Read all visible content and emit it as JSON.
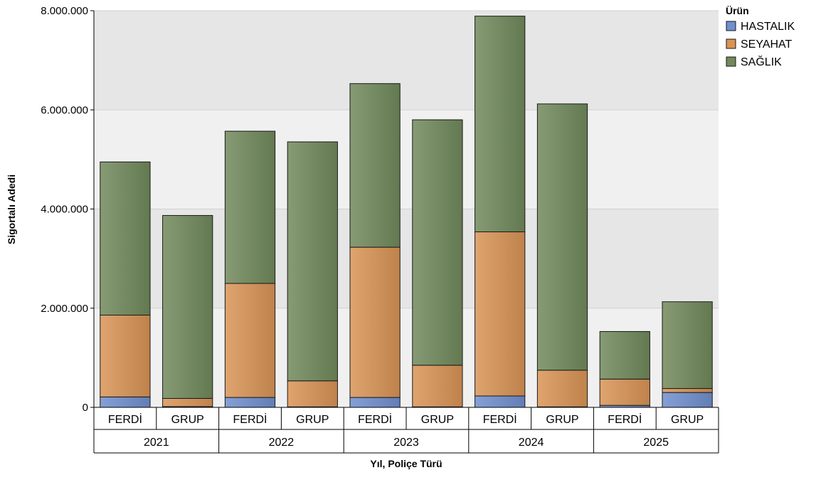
{
  "chart_data": {
    "type": "bar",
    "stacked": true,
    "title": "",
    "xlabel": "Yıl, Poliçe Türü",
    "ylabel": "Sigortalı Adedi",
    "ylim": [
      0,
      8000000
    ],
    "yticks": [
      0,
      2000000,
      4000000,
      6000000,
      8000000
    ],
    "ytick_labels": [
      "0",
      "2.000.000",
      "4.000.000",
      "6.000.000",
      "8.000.000"
    ],
    "grid": true,
    "legend_position": "top-right",
    "legend_title": "Ürün",
    "groups": [
      "2021",
      "2022",
      "2023",
      "2024",
      "2025"
    ],
    "categories": [
      "FERDİ",
      "GRUP",
      "FERDİ",
      "GRUP",
      "FERDİ",
      "GRUP",
      "FERDİ",
      "GRUP",
      "FERDİ",
      "GRUP"
    ],
    "series": [
      {
        "name": "HASTALIK",
        "color": "#6f8fcf",
        "values": [
          210000,
          15000,
          200000,
          10000,
          200000,
          10000,
          230000,
          10000,
          40000,
          300000
        ]
      },
      {
        "name": "SEYAHAT",
        "color": "#d99455",
        "values": [
          1650000,
          165000,
          2300000,
          525000,
          3030000,
          840000,
          3310000,
          740000,
          530000,
          80000
        ]
      },
      {
        "name": "SAĞLIK",
        "color": "#71895b",
        "values": [
          3090000,
          3690000,
          3070000,
          4820000,
          3300000,
          4950000,
          4350000,
          5370000,
          960000,
          1750000
        ]
      }
    ]
  }
}
